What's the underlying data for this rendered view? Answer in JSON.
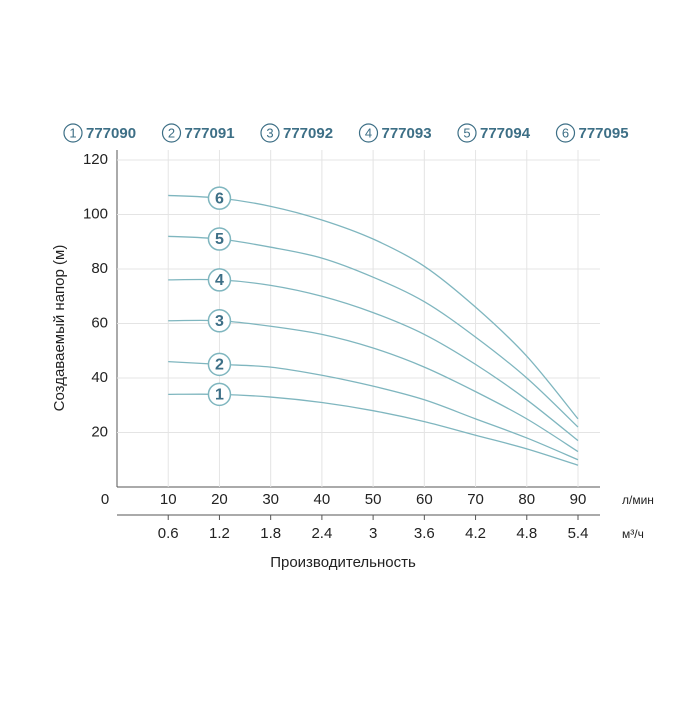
{
  "chart_data": {
    "type": "line",
    "ylabel": "Создаваемый напор (м)",
    "xlabel": "Производительность",
    "x_unit": "л/мин",
    "x2_unit": "м³/ч",
    "x": [
      10,
      20,
      30,
      40,
      50,
      60,
      70,
      80,
      90
    ],
    "xlim": [
      0,
      90
    ],
    "xticks": [
      0,
      10,
      20,
      30,
      40,
      50,
      60,
      70,
      80,
      90
    ],
    "x2lim": [
      0,
      5.4
    ],
    "x2ticks": [
      0.6,
      1.2,
      1.8,
      2.4,
      3.0,
      3.6,
      4.2,
      4.8,
      5.4
    ],
    "ylim": [
      0,
      120
    ],
    "yticks": [
      20,
      40,
      60,
      80,
      100,
      120
    ],
    "grid": true,
    "series": [
      {
        "name": "777090",
        "label": "1",
        "color": "#7fb6bf",
        "values": [
          34,
          34,
          33,
          31,
          28,
          24,
          19,
          14,
          8
        ]
      },
      {
        "name": "777091",
        "label": "2",
        "color": "#7fb6bf",
        "values": [
          46,
          45,
          44,
          41,
          37,
          32,
          25,
          18,
          10
        ]
      },
      {
        "name": "777092",
        "label": "3",
        "color": "#7fb6bf",
        "values": [
          61,
          61,
          59,
          56,
          51,
          44,
          35,
          25,
          13
        ]
      },
      {
        "name": "777093",
        "label": "4",
        "color": "#7fb6bf",
        "values": [
          76,
          76,
          74,
          70,
          64,
          56,
          45,
          32,
          17
        ]
      },
      {
        "name": "777094",
        "label": "5",
        "color": "#7fb6bf",
        "values": [
          92,
          91,
          88,
          84,
          77,
          68,
          55,
          40,
          22
        ]
      },
      {
        "name": "777095",
        "label": "6",
        "color": "#7fb6bf",
        "values": [
          107,
          106,
          103,
          98,
          91,
          81,
          66,
          48,
          25
        ]
      }
    ]
  }
}
